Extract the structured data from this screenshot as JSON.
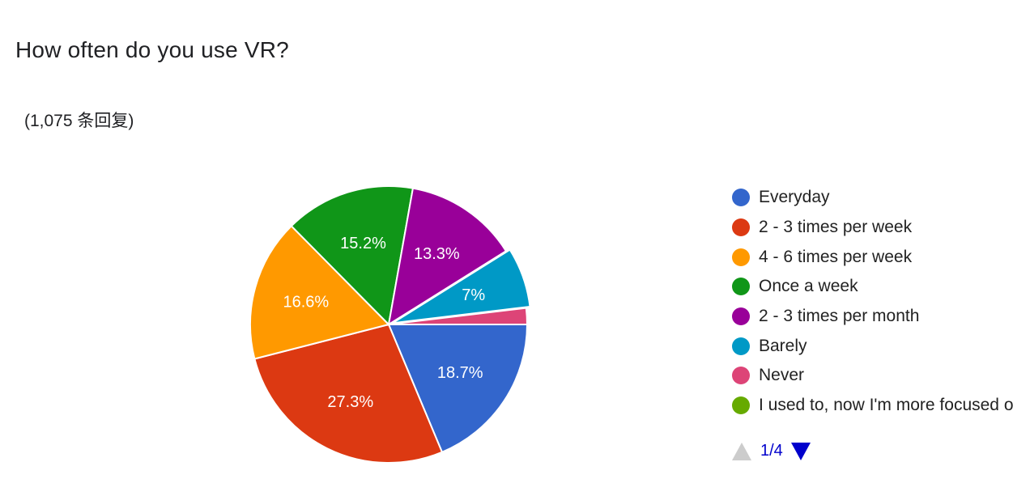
{
  "question": {
    "title": "How often do you use VR?",
    "response_count": "(1,075 条回复)"
  },
  "chart_data": {
    "type": "pie",
    "categories": [
      "Everyday",
      "2 - 3 times per week",
      "4 - 6 times per week",
      "Once a week",
      "2 - 3 times per month",
      "Barely",
      "Never",
      "I used to, now I'm more focused o"
    ],
    "values": [
      18.7,
      27.3,
      16.6,
      15.2,
      13.3,
      7.0,
      1.9,
      0
    ],
    "data_labels": [
      "18.7%",
      "27.3%",
      "16.6%",
      "15.2%",
      "13.3%",
      "7%",
      "",
      ""
    ],
    "colors": [
      "#3366cc",
      "#dc3912",
      "#ff9900",
      "#109618",
      "#990099",
      "#0099c6",
      "#dd4477",
      "#66aa00"
    ],
    "legend_position": "right",
    "exploded_slice": "Barely"
  },
  "pager": {
    "text": "1/4",
    "prev_icon": "triangle-up-icon",
    "next_icon": "triangle-down-icon",
    "prev_color": "#cccccc",
    "next_color": "#0000cc"
  }
}
